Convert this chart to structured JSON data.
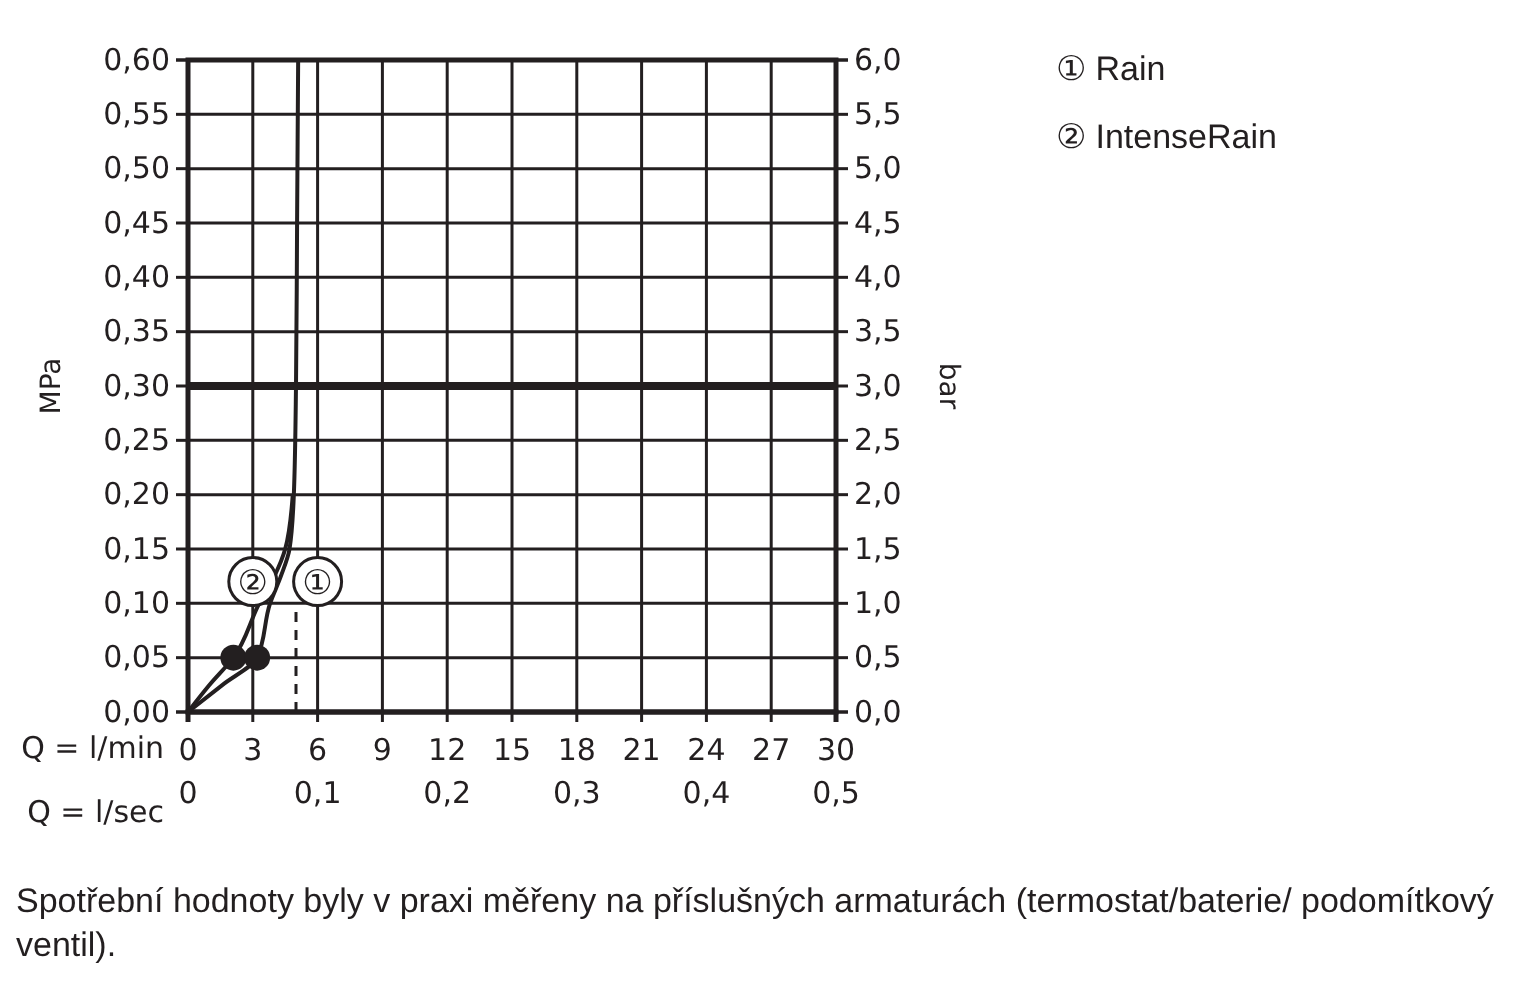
{
  "chart_data": {
    "type": "line",
    "xlabel": "Q = l/min",
    "x2label": "Q = l/sec",
    "ylabel": "MPa",
    "y2label": "bar",
    "xlim": [
      0,
      30
    ],
    "xticks": [
      0,
      3,
      6,
      9,
      12,
      15,
      18,
      21,
      24,
      27,
      30
    ],
    "x2lim": [
      0,
      0.5
    ],
    "x2ticks": [
      {
        "value": 0,
        "label": "0"
      },
      {
        "value": 0.1,
        "label": "0,1"
      },
      {
        "value": 0.2,
        "label": "0,2"
      },
      {
        "value": 0.3,
        "label": "0,3"
      },
      {
        "value": 0.4,
        "label": "0,4"
      },
      {
        "value": 0.5,
        "label": "0,5"
      }
    ],
    "ylim": [
      0,
      0.6
    ],
    "yticks": [
      {
        "value": 0,
        "label": "0,00"
      },
      {
        "value": 0.05,
        "label": "0,05"
      },
      {
        "value": 0.1,
        "label": "0,10"
      },
      {
        "value": 0.15,
        "label": "0,15"
      },
      {
        "value": 0.2,
        "label": "0,20"
      },
      {
        "value": 0.25,
        "label": "0,25"
      },
      {
        "value": 0.3,
        "label": "0,30"
      },
      {
        "value": 0.35,
        "label": "0,35"
      },
      {
        "value": 0.4,
        "label": "0,40"
      },
      {
        "value": 0.45,
        "label": "0,45"
      },
      {
        "value": 0.5,
        "label": "0,50"
      },
      {
        "value": 0.55,
        "label": "0,55"
      },
      {
        "value": 0.6,
        "label": "0,60"
      }
    ],
    "y2lim": [
      0,
      6
    ],
    "y2ticks": [
      {
        "value": 0,
        "label": "0,0"
      },
      {
        "value": 0.5,
        "label": "0,5"
      },
      {
        "value": 1,
        "label": "1,0"
      },
      {
        "value": 1.5,
        "label": "1,5"
      },
      {
        "value": 2,
        "label": "2,0"
      },
      {
        "value": 2.5,
        "label": "2,5"
      },
      {
        "value": 3,
        "label": "3,0"
      },
      {
        "value": 3.5,
        "label": "3,5"
      },
      {
        "value": 4,
        "label": "4,0"
      },
      {
        "value": 4.5,
        "label": "4,5"
      },
      {
        "value": 5,
        "label": "5,0"
      },
      {
        "value": 5.5,
        "label": "5,5"
      },
      {
        "value": 6,
        "label": "6,0"
      }
    ],
    "grid": true,
    "legend": "top right",
    "marker": "none",
    "line_style": "solid",
    "series": [
      {
        "name": "① Rain",
        "color": "#231f20",
        "x": [
          0,
          1.6,
          3.2,
          3.8,
          4.3,
          4.7,
          4.9,
          5.0,
          5.05,
          5.1
        ],
        "values": [
          0,
          0.025,
          0.05,
          0.1,
          0.125,
          0.15,
          0.2,
          0.3,
          0.45,
          0.6
        ]
      },
      {
        "name": "② IntenseRain",
        "color": "#231f20",
        "x": [
          0,
          1.0,
          2.1,
          3.3,
          4.0,
          4.5,
          4.85
        ],
        "values": [
          0,
          0.025,
          0.05,
          0.1,
          0.125,
          0.15,
          0.2
        ]
      },
      {
        "type": "scatter",
        "marker": "circle",
        "color": "#231f20",
        "x": [
          2.1,
          3.2
        ],
        "values": [
          0.05,
          0.05
        ]
      }
    ],
    "ref_lines": [
      {
        "axis": "y",
        "value": 0.3,
        "color": "#231f20",
        "line_style": "solid"
      },
      {
        "axis": "x",
        "value": 5,
        "color": "#231f20",
        "line_style": "dashed"
      }
    ],
    "annotations": [
      {
        "text": "②",
        "x": 3,
        "y": 0.12
      },
      {
        "text": "①",
        "x": 6,
        "y": 0.12
      },
      "Spotřební hodnoty byly v praxi měřeny na příslušných armaturách (termostat/baterie/ podomítkový ventil)."
    ]
  }
}
